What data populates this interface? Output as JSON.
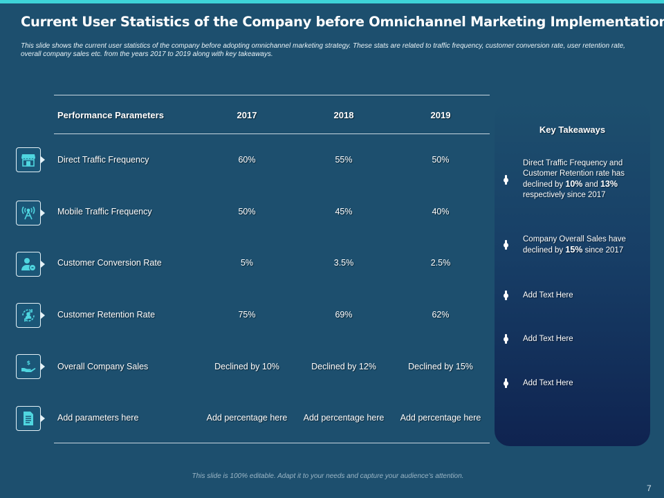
{
  "slide": {
    "title": "Current User Statistics of the Company before Omnichannel Marketing Implementation",
    "subtitle": "This slide shows the current user statistics of the company before adopting omnichannel marketing strategy. These stats are related to traffic frequency, customer conversion rate, user retention rate, overall company sales etc. from the years 2017 to 2019 along with key takeaways.",
    "footer": "This slide is 100% editable. Adapt it to your needs and capture your audience's attention.",
    "page_number": "7",
    "colors": {
      "background": "#1d4f6e",
      "accent": "#3ed3d8",
      "icon": "#4fd6e0"
    }
  },
  "table": {
    "headers": [
      "Performance Parameters",
      "2017",
      "2018",
      "2019"
    ],
    "rows": [
      {
        "icon": "storefront-icon",
        "param": "Direct Traffic  Frequency",
        "v2017": "60%",
        "v2018": "55%",
        "v2019": "50%"
      },
      {
        "icon": "antenna-icon",
        "param": "Mobile Traffic Frequency",
        "v2017": "50%",
        "v2018": "45%",
        "v2019": "40%"
      },
      {
        "icon": "user-coin-icon",
        "param": "Customer Conversion  Rate",
        "v2017": "5%",
        "v2018": "3.5%",
        "v2019": "2.5%"
      },
      {
        "icon": "refresh-users-icon",
        "param": "Customer Retention Rate",
        "v2017": "75%",
        "v2018": "69%",
        "v2019": "62%"
      },
      {
        "icon": "hand-dollar-icon",
        "param": "Overall  Company Sales",
        "v2017": "Declined by 10%",
        "v2018": "Declined by 12%",
        "v2019": "Declined by 15%"
      },
      {
        "icon": "document-icon",
        "param": "Add parameters  here",
        "v2017": "Add percentage  here",
        "v2018": "Add percentage  here",
        "v2019": "Add percentage  here"
      }
    ]
  },
  "takeaways": {
    "title": "Key Takeaways",
    "items": [
      {
        "pre": "Direct Traffic Frequency and Customer Retention rate has declined by ",
        "b1": "10%",
        "mid": " and ",
        "b2": "13%",
        "post": " respectively since 2017"
      },
      {
        "pre": "Company Overall Sales have declined by ",
        "b1": "15%",
        "post": " since 2017"
      },
      {
        "text": "Add Text Here"
      },
      {
        "text": "Add Text Here"
      },
      {
        "text": "Add Text Here"
      }
    ]
  }
}
